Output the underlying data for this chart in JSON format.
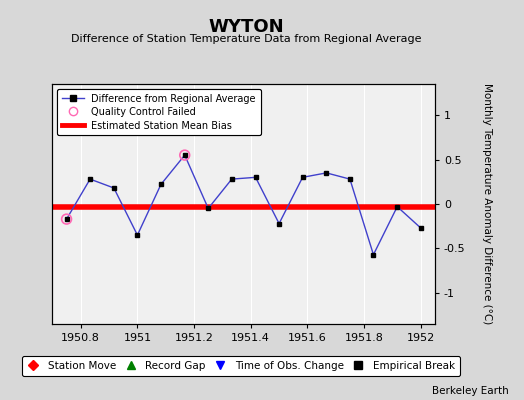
{
  "title": "WYTON",
  "subtitle": "Difference of Station Temperature Data from Regional Average",
  "ylabel_right": "Monthly Temperature Anomaly Difference (°C)",
  "xlim": [
    1950.7,
    1952.05
  ],
  "ylim": [
    -1.35,
    1.35
  ],
  "yticks": [
    -1,
    -0.5,
    0,
    0.5,
    1
  ],
  "xticks": [
    1950.8,
    1951,
    1951.2,
    1951.4,
    1951.6,
    1951.8,
    1952
  ],
  "xtick_labels": [
    "1950.8",
    "1951",
    "1951.2",
    "1951.4",
    "1951.6",
    "1951.8",
    "1952"
  ],
  "fig_bg_color": "#d8d8d8",
  "plot_bg_color": "#f0f0f0",
  "grid_color": "white",
  "main_line_color": "#4040cc",
  "bias_line_color": "red",
  "bias_value": -0.03,
  "qc_failed_color": "#ff69b4",
  "data_x": [
    1950.75,
    1950.833,
    1950.917,
    1951.0,
    1951.083,
    1951.167,
    1951.25,
    1951.333,
    1951.417,
    1951.5,
    1951.583,
    1951.667,
    1951.75,
    1951.833,
    1951.917,
    1952.0
  ],
  "data_y": [
    -0.17,
    0.28,
    0.18,
    -0.35,
    0.22,
    0.55,
    -0.05,
    0.28,
    0.3,
    -0.22,
    0.3,
    0.35,
    0.28,
    -0.57,
    -0.03,
    -0.27
  ],
  "qc_failed_indices": [
    0,
    5
  ],
  "watermark": "Berkeley Earth",
  "legend2_entries": [
    {
      "label": "Station Move",
      "color": "red",
      "marker": "D"
    },
    {
      "label": "Record Gap",
      "color": "green",
      "marker": "^"
    },
    {
      "label": "Time of Obs. Change",
      "color": "blue",
      "marker": "v"
    },
    {
      "label": "Empirical Break",
      "color": "black",
      "marker": "s"
    }
  ]
}
